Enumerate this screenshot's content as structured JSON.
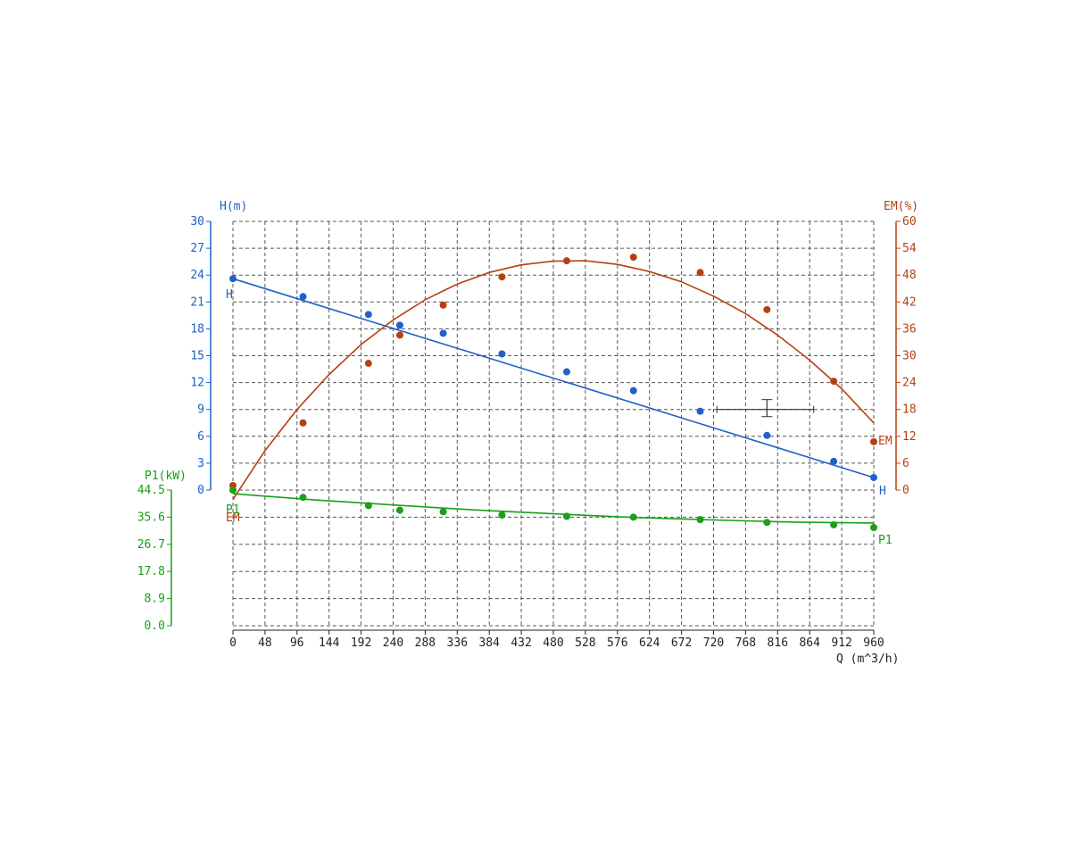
{
  "chart_data": {
    "type": "line",
    "xlabel": "Q (m^3/h)",
    "xlim": [
      0,
      960
    ],
    "x_ticks": [
      "0",
      "48",
      "96",
      "144",
      "192",
      "240",
      "288",
      "336",
      "384",
      "432",
      "480",
      "528",
      "576",
      "624",
      "672",
      "720",
      "768",
      "816",
      "864",
      "912",
      "960"
    ],
    "grid": true,
    "axes": {
      "H": {
        "label": "H(m)",
        "side": "left",
        "color": "#2060c8",
        "ylim": [
          0,
          30
        ],
        "ticks": [
          "0",
          "3",
          "6",
          "9",
          "12",
          "15",
          "18",
          "21",
          "24",
          "27",
          "30"
        ]
      },
      "EM": {
        "label": "EM(%)",
        "side": "right",
        "color": "#b84010",
        "ylim": [
          0,
          60
        ],
        "ticks": [
          "0",
          "6",
          "12",
          "18",
          "24",
          "30",
          "36",
          "42",
          "48",
          "54",
          "60"
        ]
      },
      "P1": {
        "label": "P1(kW)",
        "side": "left-lower",
        "color": "#18a018",
        "ylim": [
          0,
          44.5
        ],
        "ticks": [
          "0.0",
          "8.9",
          "17.8",
          "26.7",
          "35.6",
          "44.5"
        ]
      }
    },
    "series": [
      {
        "name": "H",
        "axis": "H",
        "color": "#2060c8",
        "x": [
          0,
          105,
          203,
          250,
          315,
          403,
          500,
          600,
          700,
          800,
          900,
          960
        ],
        "y": [
          23.6,
          21.6,
          19.6,
          18.4,
          17.5,
          15.2,
          13.2,
          11.1,
          8.8,
          6.1,
          3.2,
          1.4
        ],
        "fit": {
          "x": [
            0,
            960
          ],
          "y": [
            23.6,
            1.4
          ]
        }
      },
      {
        "name": "EM",
        "axis": "EM",
        "color": "#b84010",
        "x": [
          0,
          105,
          203,
          250,
          315,
          403,
          500,
          600,
          700,
          800,
          900,
          960
        ],
        "y": [
          1,
          15,
          28.3,
          34.6,
          41.3,
          47.6,
          51.2,
          52,
          48.6,
          40.3,
          24.3,
          10.8
        ],
        "fit": {
          "x": [
            0,
            48,
            96,
            144,
            192,
            240,
            288,
            336,
            384,
            432,
            480,
            528,
            576,
            624,
            672,
            720,
            768,
            816,
            864,
            912,
            960
          ],
          "y": [
            -2.1,
            8.8,
            18.0,
            25.8,
            32.5,
            38.0,
            42.5,
            46.0,
            48.6,
            50.3,
            51.1,
            51.2,
            50.4,
            48.8,
            46.5,
            43.3,
            39.4,
            34.6,
            29.0,
            22.6,
            15.0
          ]
        }
      },
      {
        "name": "P1",
        "axis": "P1",
        "color": "#18a018",
        "x": [
          0,
          105,
          203,
          250,
          315,
          403,
          500,
          600,
          700,
          800,
          900,
          960
        ],
        "y": [
          44.5,
          42.1,
          39.4,
          37.9,
          37.4,
          36.3,
          35.9,
          35.6,
          34.8,
          33.9,
          33.1,
          32.2
        ],
        "fit": {
          "x": [
            0,
            120,
            240,
            360,
            480,
            600,
            720,
            840,
            960
          ],
          "y": [
            43.3,
            41.3,
            39.6,
            38.0,
            36.7,
            35.5,
            34.7,
            34.0,
            33.7
          ]
        }
      }
    ],
    "error_bar": {
      "x": 800,
      "x_err": [
        725,
        870
      ],
      "y": 9.0,
      "y_err": [
        8.2,
        10.1
      ],
      "axis": "H"
    }
  }
}
